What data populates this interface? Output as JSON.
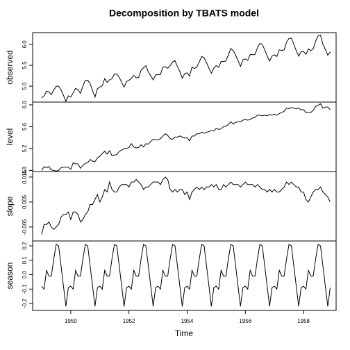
{
  "chart_data": {
    "type": "line",
    "title": "Decomposition by TBATS model",
    "x_label": "Time",
    "color": "#000000",
    "xlim": [
      1948.69,
      1959.12
    ],
    "xticks": [
      1950,
      1952,
      1954,
      1956,
      1958
    ],
    "x": [
      1949,
      1949.083,
      1949.167,
      1949.25,
      1949.333,
      1949.417,
      1949.5,
      1949.583,
      1949.667,
      1949.75,
      1949.833,
      1949.917,
      1950,
      1950.083,
      1950.167,
      1950.25,
      1950.333,
      1950.417,
      1950.5,
      1950.583,
      1950.667,
      1950.75,
      1950.833,
      1950.917,
      1951,
      1951.083,
      1951.167,
      1951.25,
      1951.333,
      1951.417,
      1951.5,
      1951.583,
      1951.667,
      1951.75,
      1951.833,
      1951.917,
      1952,
      1952.083,
      1952.167,
      1952.25,
      1952.333,
      1952.417,
      1952.5,
      1952.583,
      1952.667,
      1952.75,
      1952.833,
      1952.917,
      1953,
      1953.083,
      1953.167,
      1953.25,
      1953.333,
      1953.417,
      1953.5,
      1953.583,
      1953.667,
      1953.75,
      1953.833,
      1953.917,
      1954,
      1954.083,
      1954.167,
      1954.25,
      1954.333,
      1954.417,
      1954.5,
      1954.583,
      1954.667,
      1954.75,
      1954.833,
      1954.917,
      1955,
      1955.083,
      1955.167,
      1955.25,
      1955.333,
      1955.417,
      1955.5,
      1955.583,
      1955.667,
      1955.75,
      1955.833,
      1955.917,
      1956,
      1956.083,
      1956.167,
      1956.25,
      1956.333,
      1956.417,
      1956.5,
      1956.583,
      1956.667,
      1956.75,
      1956.833,
      1956.917,
      1957,
      1957.083,
      1957.167,
      1957.25,
      1957.333,
      1957.417,
      1957.5,
      1957.583,
      1957.667,
      1957.75,
      1957.833,
      1957.917,
      1958,
      1958.083,
      1958.167,
      1958.25,
      1958.333,
      1958.417,
      1958.5,
      1958.583,
      1958.667,
      1958.75,
      1958.833,
      1958.917
    ],
    "series": [
      {
        "name": "observed",
        "ylim": [
          4.62,
          6.28
        ],
        "yticks": [
          {
            "value": 5,
            "label": "5.0"
          },
          5.5,
          {
            "value": 6,
            "label": "6.0"
          }
        ],
        "values": [
          4.72,
          4.77,
          4.88,
          4.86,
          4.8,
          4.91,
          5.0,
          5.0,
          4.91,
          4.78,
          4.64,
          4.77,
          4.74,
          4.84,
          4.95,
          4.91,
          4.83,
          5.0,
          5.14,
          5.14,
          5.06,
          4.89,
          4.74,
          4.94,
          4.98,
          5.01,
          5.18,
          5.09,
          5.15,
          5.18,
          5.29,
          5.29,
          5.21,
          5.09,
          4.98,
          5.11,
          5.14,
          5.19,
          5.26,
          5.2,
          5.21,
          5.38,
          5.44,
          5.49,
          5.34,
          5.25,
          5.15,
          5.27,
          5.28,
          5.28,
          5.46,
          5.46,
          5.43,
          5.49,
          5.58,
          5.61,
          5.47,
          5.35,
          5.19,
          5.3,
          5.32,
          5.24,
          5.46,
          5.42,
          5.46,
          5.58,
          5.71,
          5.68,
          5.56,
          5.43,
          5.31,
          5.43,
          5.49,
          5.45,
          5.59,
          5.59,
          5.6,
          5.75,
          5.9,
          5.85,
          5.74,
          5.61,
          5.47,
          5.63,
          5.65,
          5.62,
          5.76,
          5.75,
          5.76,
          5.92,
          6.02,
          6.0,
          5.87,
          5.72,
          5.6,
          5.72,
          5.75,
          5.71,
          5.87,
          5.85,
          5.87,
          6.05,
          6.14,
          6.15,
          6.0,
          5.85,
          5.72,
          5.82,
          5.83,
          5.76,
          5.89,
          5.85,
          5.89,
          6.08,
          6.2,
          6.22,
          6.0,
          5.88,
          5.74,
          5.82
        ]
      },
      {
        "name": "level",
        "ylim": [
          4.78,
          6.05
        ],
        "yticks": [
          4.8,
          5.2,
          5.6,
          {
            "value": 6,
            "label": "6.0"
          }
        ],
        "values": [
          4.8,
          4.87,
          4.85,
          4.87,
          4.81,
          4.8,
          4.79,
          4.8,
          4.85,
          4.86,
          4.86,
          4.86,
          4.82,
          4.94,
          4.92,
          4.92,
          4.84,
          4.89,
          4.93,
          4.94,
          5.0,
          4.97,
          4.96,
          5.03,
          5.06,
          5.11,
          5.15,
          5.1,
          5.16,
          5.07,
          5.08,
          5.09,
          5.15,
          5.17,
          5.2,
          5.2,
          5.22,
          5.29,
          5.23,
          5.21,
          5.22,
          5.27,
          5.23,
          5.29,
          5.28,
          5.33,
          5.37,
          5.36,
          5.36,
          5.38,
          5.43,
          5.47,
          5.44,
          5.38,
          5.37,
          5.41,
          5.41,
          5.43,
          5.41,
          5.39,
          5.4,
          5.34,
          5.43,
          5.43,
          5.47,
          5.47,
          5.5,
          5.48,
          5.5,
          5.51,
          5.53,
          5.52,
          5.57,
          5.55,
          5.56,
          5.6,
          5.61,
          5.64,
          5.69,
          5.65,
          5.68,
          5.69,
          5.69,
          5.72,
          5.73,
          5.72,
          5.73,
          5.76,
          5.77,
          5.81,
          5.81,
          5.8,
          5.81,
          5.8,
          5.82,
          5.81,
          5.83,
          5.81,
          5.84,
          5.86,
          5.88,
          5.94,
          5.93,
          5.95,
          5.94,
          5.93,
          5.94,
          5.91,
          5.91,
          5.86,
          5.86,
          5.86,
          5.9,
          5.97,
          5.99,
          6.02,
          5.94,
          5.96,
          5.96,
          5.91
        ]
      },
      {
        "name": "slope",
        "ylim": [
          -0.0106,
          0.0172
        ],
        "yticks": [
          -0.005,
          0.005,
          0.015
        ],
        "values": [
          -0.008,
          -0.004,
          -0.004,
          -0.003,
          -0.005,
          -0.006,
          -0.005,
          -0.004,
          -0.001,
          0.0,
          0.0,
          0.001,
          -0.002,
          0.001,
          0.001,
          0.0,
          -0.003,
          -0.002,
          0.0,
          0.001,
          0.004,
          0.004,
          0.006,
          0.008,
          0.005,
          0.007,
          0.01,
          0.009,
          0.013,
          0.01,
          0.009,
          0.009,
          0.011,
          0.012,
          0.012,
          0.012,
          0.011,
          0.013,
          0.013,
          0.014,
          0.013,
          0.012,
          0.01,
          0.011,
          0.011,
          0.012,
          0.013,
          0.013,
          0.013,
          0.012,
          0.014,
          0.015,
          0.014,
          0.01,
          0.009,
          0.01,
          0.009,
          0.01,
          0.01,
          0.008,
          0.009,
          0.006,
          0.009,
          0.01,
          0.011,
          0.01,
          0.011,
          0.01,
          0.011,
          0.011,
          0.012,
          0.011,
          0.012,
          0.01,
          0.01,
          0.012,
          0.011,
          0.012,
          0.013,
          0.012,
          0.012,
          0.012,
          0.011,
          0.012,
          0.013,
          0.012,
          0.012,
          0.012,
          0.011,
          0.012,
          0.011,
          0.01,
          0.01,
          0.009,
          0.01,
          0.009,
          0.01,
          0.009,
          0.009,
          0.01,
          0.011,
          0.013,
          0.012,
          0.013,
          0.012,
          0.011,
          0.011,
          0.009,
          0.009,
          0.006,
          0.005,
          0.007,
          0.009,
          0.01,
          0.01,
          0.011,
          0.009,
          0.008,
          0.007,
          0.005
        ]
      },
      {
        "name": "season",
        "ylim": [
          -0.248,
          0.234
        ],
        "yticks": [
          -0.2,
          -0.1,
          {
            "value": 0,
            "label": "0.0"
          },
          0.1,
          0.2
        ],
        "values": [
          -0.08,
          -0.1,
          0.03,
          -0.01,
          -0.01,
          0.11,
          0.21,
          0.2,
          0.06,
          -0.08,
          -0.22,
          -0.09,
          -0.08,
          -0.1,
          0.03,
          -0.01,
          -0.01,
          0.11,
          0.21,
          0.2,
          0.06,
          -0.08,
          -0.22,
          -0.09,
          -0.08,
          -0.1,
          0.03,
          -0.01,
          -0.01,
          0.11,
          0.21,
          0.2,
          0.06,
          -0.08,
          -0.22,
          -0.09,
          -0.08,
          -0.1,
          0.03,
          -0.01,
          -0.01,
          0.11,
          0.21,
          0.2,
          0.06,
          -0.08,
          -0.22,
          -0.09,
          -0.08,
          -0.1,
          0.03,
          -0.01,
          -0.01,
          0.11,
          0.21,
          0.2,
          0.06,
          -0.08,
          -0.22,
          -0.09,
          -0.08,
          -0.1,
          0.03,
          -0.01,
          -0.01,
          0.11,
          0.21,
          0.2,
          0.06,
          -0.08,
          -0.22,
          -0.09,
          -0.08,
          -0.1,
          0.03,
          -0.01,
          -0.01,
          0.11,
          0.21,
          0.2,
          0.06,
          -0.08,
          -0.22,
          -0.09,
          -0.08,
          -0.1,
          0.03,
          -0.01,
          -0.01,
          0.11,
          0.21,
          0.2,
          0.06,
          -0.08,
          -0.22,
          -0.09,
          -0.08,
          -0.1,
          0.03,
          -0.01,
          -0.01,
          0.11,
          0.21,
          0.2,
          0.06,
          -0.08,
          -0.22,
          -0.09,
          -0.08,
          -0.1,
          0.03,
          -0.01,
          -0.01,
          0.11,
          0.21,
          0.2,
          0.06,
          -0.08,
          -0.22,
          -0.09
        ]
      }
    ]
  }
}
